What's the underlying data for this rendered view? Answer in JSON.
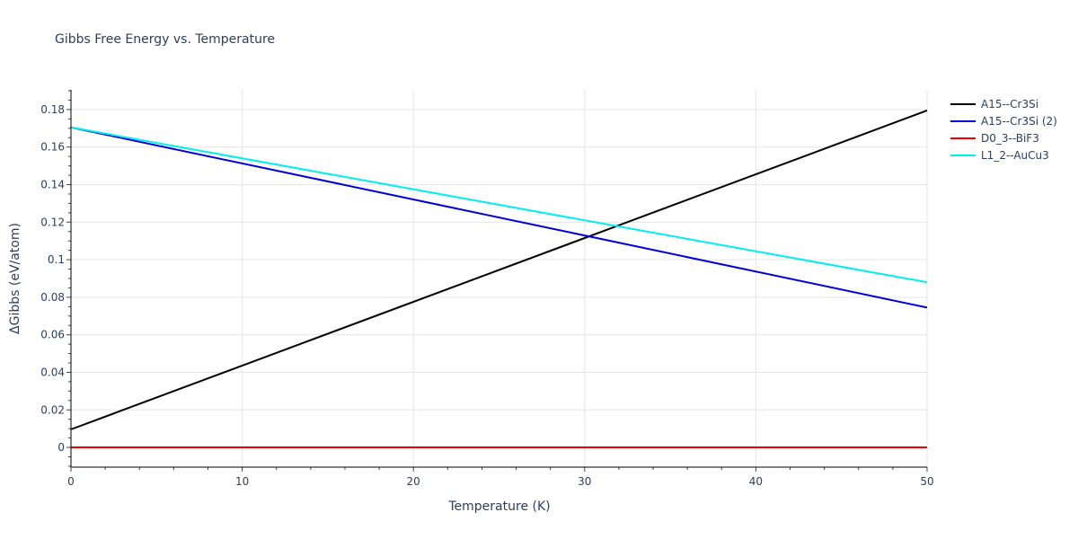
{
  "chart_data": {
    "type": "line",
    "title": "Gibbs Free Energy vs. Temperature",
    "xlabel": "Temperature (K)",
    "ylabel": "ΔGibbs (eV/atom)",
    "xlim": [
      0,
      50
    ],
    "ylim": [
      -0.0105,
      0.1905
    ],
    "x_ticks": [
      0,
      10,
      20,
      30,
      40,
      50
    ],
    "y_ticks": [
      0,
      0.02,
      0.04,
      0.06,
      0.08,
      0.1,
      0.12,
      0.14,
      0.16,
      0.18
    ],
    "y_tick_labels": [
      "0",
      "0.02",
      "0.04",
      "0.06",
      "0.08",
      "0.1",
      "0.12",
      "0.14",
      "0.16",
      "0.18"
    ],
    "grid": true,
    "legend_position": "right",
    "x": [
      0,
      50
    ],
    "series": [
      {
        "name": "A15--Cr3Si",
        "color": "#000000",
        "values": [
          0.0096,
          0.1795
        ]
      },
      {
        "name": "A15--Cr3Si (2)",
        "color": "#0000dd",
        "values": [
          0.1705,
          0.0745
        ]
      },
      {
        "name": "D0_3--BiF3",
        "color": "#ee0000",
        "values": [
          0,
          0
        ]
      },
      {
        "name": "L1_2--AuCu3",
        "color": "#00eeee",
        "values": [
          0.1705,
          0.088
        ]
      }
    ]
  }
}
